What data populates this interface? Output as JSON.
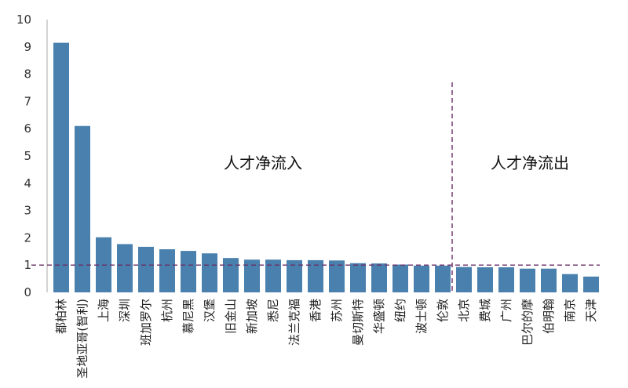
{
  "chart_data": {
    "type": "bar",
    "categories": [
      "都柏林",
      "圣地亚哥(智利)",
      "上海",
      "深圳",
      "班加罗尔",
      "杭州",
      "慕尼黑",
      "汉堡",
      "旧金山",
      "新加坡",
      "悉尼",
      "法兰克福",
      "香港",
      "苏州",
      "曼切斯特",
      "华盛顿",
      "纽约",
      "波士顿",
      "伦敦",
      "北京",
      "费城",
      "广州",
      "巴尔的摩",
      "伯明翰",
      "南京",
      "天津"
    ],
    "values": [
      9.15,
      6.1,
      2.02,
      1.77,
      1.67,
      1.58,
      1.52,
      1.43,
      1.26,
      1.2,
      1.2,
      1.18,
      1.18,
      1.17,
      1.07,
      1.06,
      1.02,
      0.98,
      0.98,
      0.93,
      0.92,
      0.92,
      0.87,
      0.87,
      0.67,
      0.58
    ],
    "yticks": [
      "0",
      "1",
      "2",
      "3",
      "4",
      "5",
      "6",
      "7",
      "8",
      "9",
      "10"
    ],
    "ylim": [
      0,
      10
    ],
    "reference_line": 1,
    "annotations": [
      "人才净流入",
      "人才净流出"
    ],
    "bar_color": "#4a80ad",
    "line_color": "#6b2e68",
    "axis_color": "#aaaaaa"
  }
}
